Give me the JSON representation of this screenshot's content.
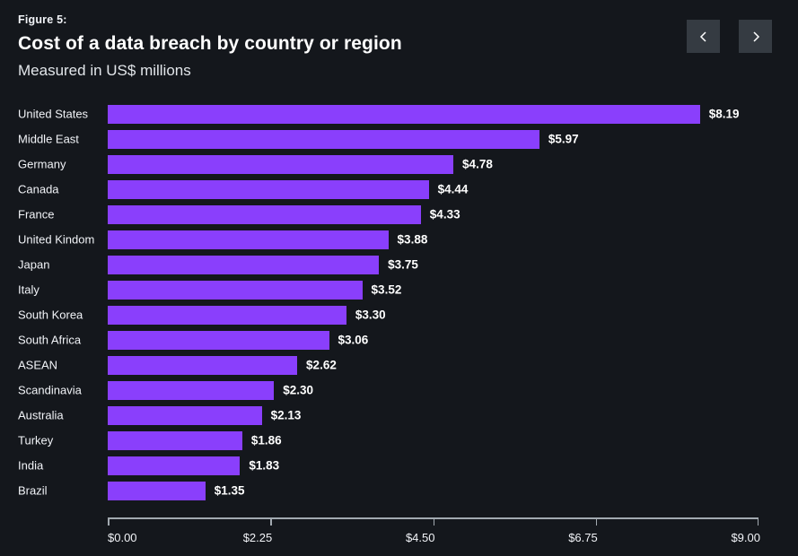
{
  "header": {
    "figure_label": "Figure 5:",
    "title": "Cost of a data breach by country or region",
    "subtitle": "Measured in US$ millions"
  },
  "nav": {
    "prev_icon": "chevron-left",
    "next_icon": "chevron-right"
  },
  "colors": {
    "background": "#14171c",
    "bar": "#8a3ffc",
    "button_background": "#353b42",
    "axis": "#a2a9b0",
    "text_primary": "#ffffff",
    "text_secondary": "#f2f4f8"
  },
  "chart_data": {
    "type": "bar",
    "orientation": "horizontal",
    "title": "Cost of a data breach by country or region",
    "subtitle": "Measured in US$ millions",
    "unit": "US$ millions",
    "categories": [
      "United States",
      "Middle East",
      "Germany",
      "Canada",
      "France",
      "United Kindom",
      "Japan",
      "Italy",
      "South Korea",
      "South Africa",
      "ASEAN",
      "Scandinavia",
      "Australia",
      "Turkey",
      "India",
      "Brazil"
    ],
    "values": [
      8.19,
      5.97,
      4.78,
      4.44,
      4.33,
      3.88,
      3.75,
      3.52,
      3.3,
      3.06,
      2.62,
      2.3,
      2.13,
      1.86,
      1.83,
      1.35
    ],
    "value_labels": [
      "$8.19",
      "$5.97",
      "$4.78",
      "$4.44",
      "$4.33",
      "$3.88",
      "$3.75",
      "$3.52",
      "$3.30",
      "$3.06",
      "$2.62",
      "$2.30",
      "$2.13",
      "$1.86",
      "$1.83",
      "$1.35"
    ],
    "xlim": [
      0,
      9
    ],
    "x_tick_values": [
      0,
      2.25,
      4.5,
      6.75,
      9
    ],
    "x_tick_labels": [
      "$0.00",
      "$2.25",
      "$4.50",
      "$6.75",
      "$9.00"
    ],
    "grid": false,
    "legend": "none",
    "bar_color": "#8a3ffc"
  }
}
